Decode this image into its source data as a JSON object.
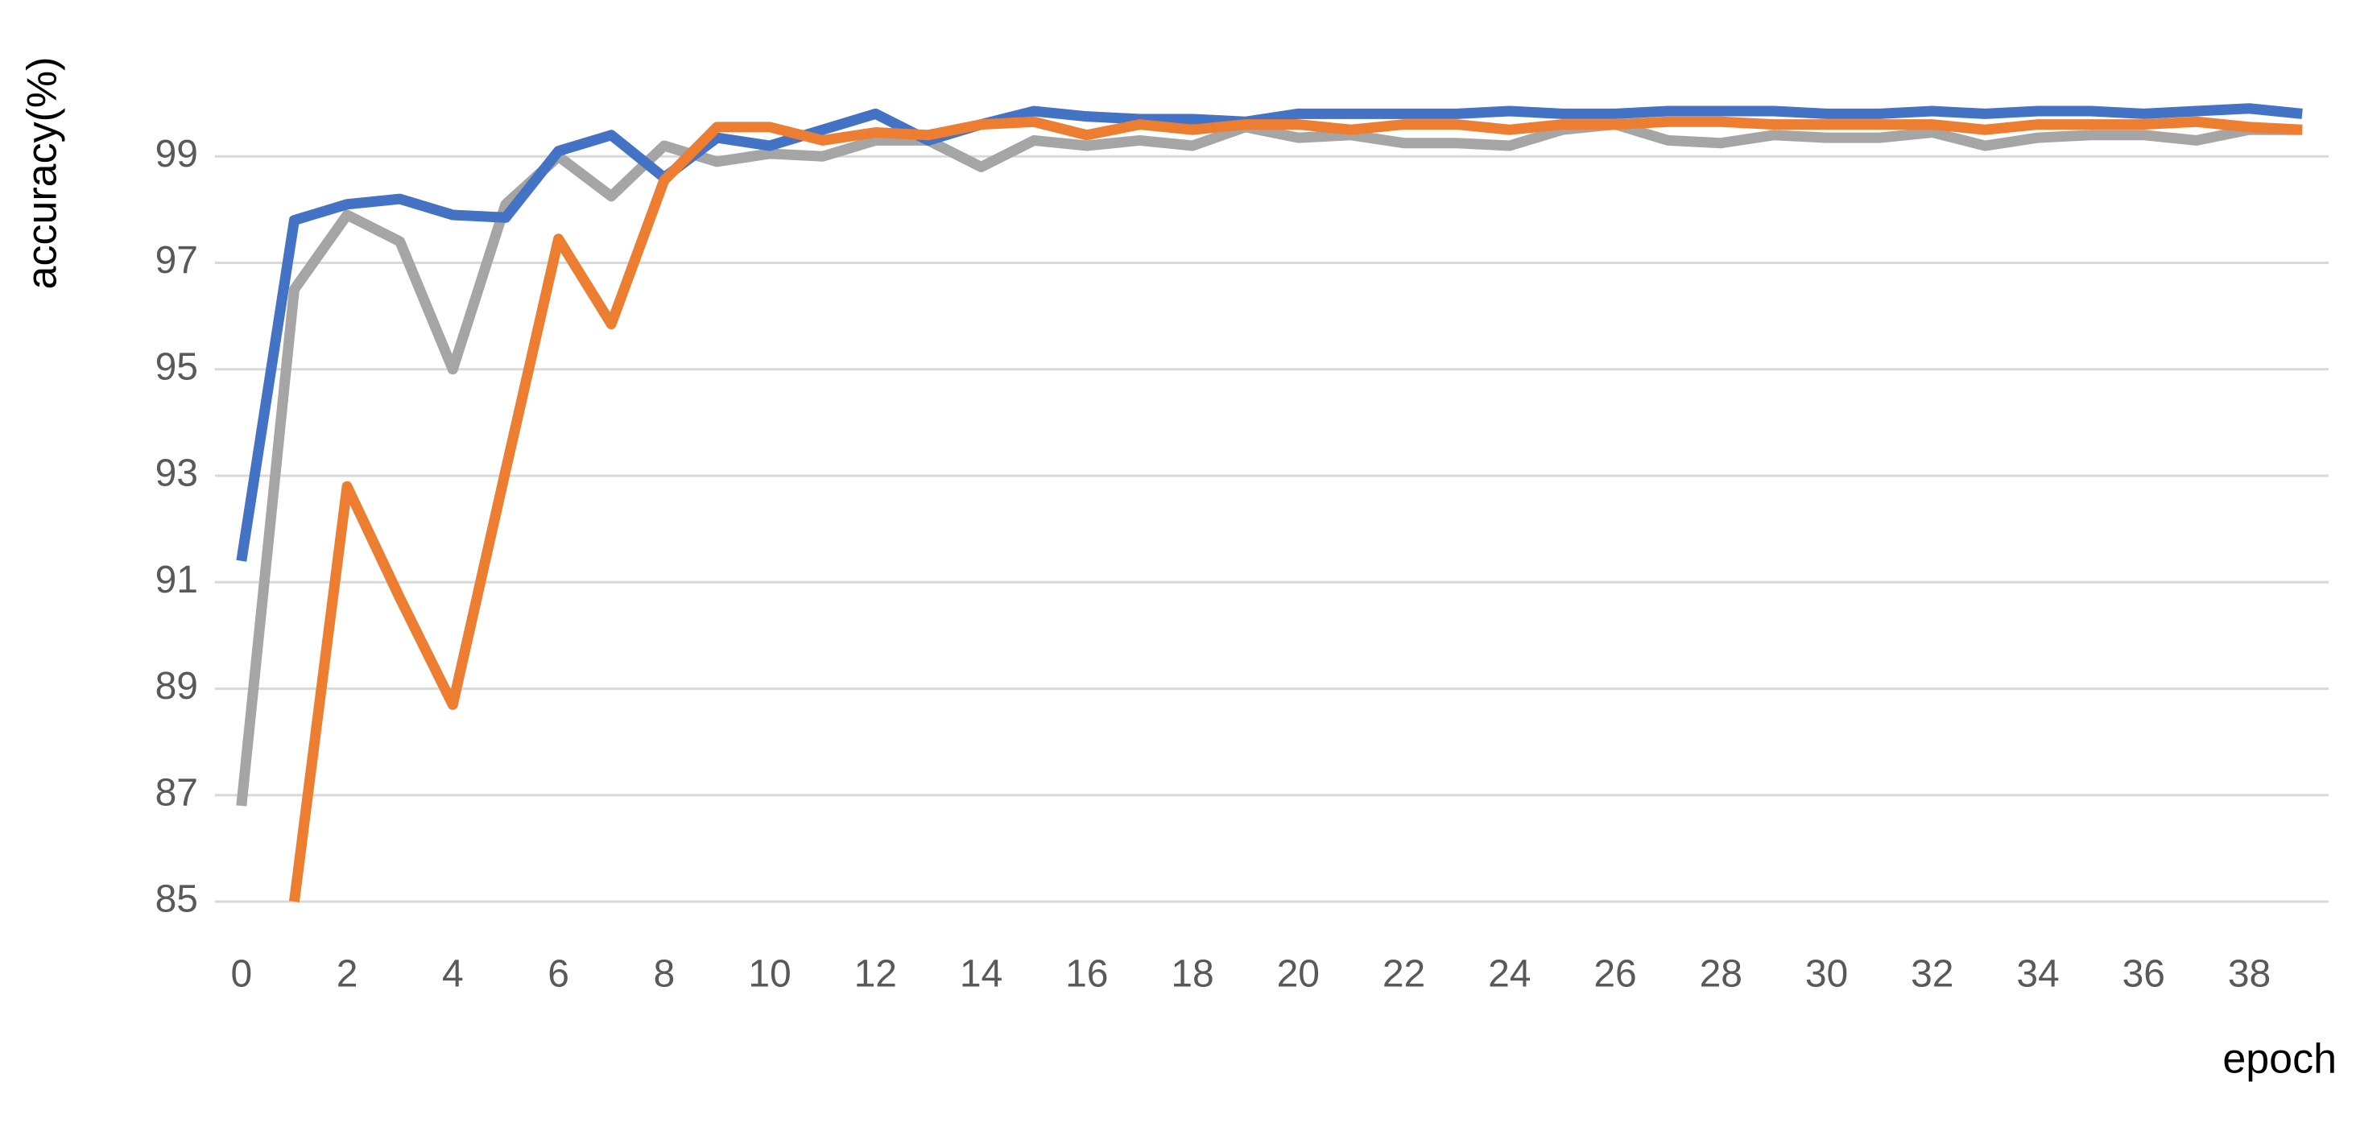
{
  "chart_data": {
    "type": "line",
    "x_label": "epoch",
    "y_label": "accuracy(%)",
    "x": [
      0,
      1,
      2,
      3,
      4,
      5,
      6,
      7,
      8,
      9,
      10,
      11,
      12,
      13,
      14,
      15,
      16,
      17,
      18,
      19,
      20,
      21,
      22,
      23,
      24,
      25,
      26,
      27,
      28,
      29,
      30,
      31,
      32,
      33,
      34,
      35,
      36,
      37,
      38,
      39
    ],
    "xlim": [
      -0.5,
      39.5
    ],
    "xticks": [
      0,
      2,
      4,
      6,
      8,
      10,
      12,
      14,
      16,
      18,
      20,
      22,
      24,
      26,
      28,
      30,
      32,
      34,
      36,
      38
    ],
    "ylim": [
      85,
      101
    ],
    "yticks": [
      85,
      87,
      89,
      91,
      93,
      95,
      97,
      99
    ],
    "grid": true,
    "series": [
      {
        "color": "#a5a5a5",
        "values": [
          86.8,
          96.5,
          97.9,
          97.4,
          95.0,
          98.1,
          99.0,
          98.25,
          99.2,
          98.9,
          99.05,
          99.0,
          99.3,
          99.3,
          98.8,
          99.3,
          99.2,
          99.3,
          99.2,
          99.55,
          99.35,
          99.4,
          99.25,
          99.25,
          99.2,
          99.5,
          99.6,
          99.3,
          99.25,
          99.4,
          99.35,
          99.35,
          99.45,
          99.2,
          99.35,
          99.4,
          99.4,
          99.3,
          99.5,
          99.5
        ]
      },
      {
        "color": "#4472c4",
        "values": [
          91.4,
          97.8,
          98.1,
          98.2,
          97.9,
          97.85,
          99.1,
          99.4,
          98.6,
          99.35,
          99.2,
          99.5,
          99.8,
          99.3,
          99.6,
          99.85,
          99.75,
          99.7,
          99.7,
          99.65,
          99.8,
          99.8,
          99.8,
          99.8,
          99.85,
          99.8,
          99.8,
          99.85,
          99.85,
          99.85,
          99.8,
          99.8,
          99.85,
          99.8,
          99.85,
          99.85,
          99.8,
          99.85,
          99.9,
          99.8
        ]
      },
      {
        "color": "#ed7d31",
        "values": [
          null,
          85,
          92.8,
          90.7,
          88.7,
          93.1,
          97.45,
          95.85,
          98.55,
          99.55,
          99.55,
          99.3,
          99.45,
          99.4,
          99.6,
          99.65,
          99.4,
          99.6,
          99.5,
          99.6,
          99.6,
          99.5,
          99.6,
          99.6,
          99.5,
          99.6,
          99.6,
          99.65,
          99.65,
          99.6,
          99.6,
          99.6,
          99.6,
          99.5,
          99.6,
          99.6,
          99.6,
          99.65,
          99.55,
          99.5
        ]
      }
    ]
  }
}
